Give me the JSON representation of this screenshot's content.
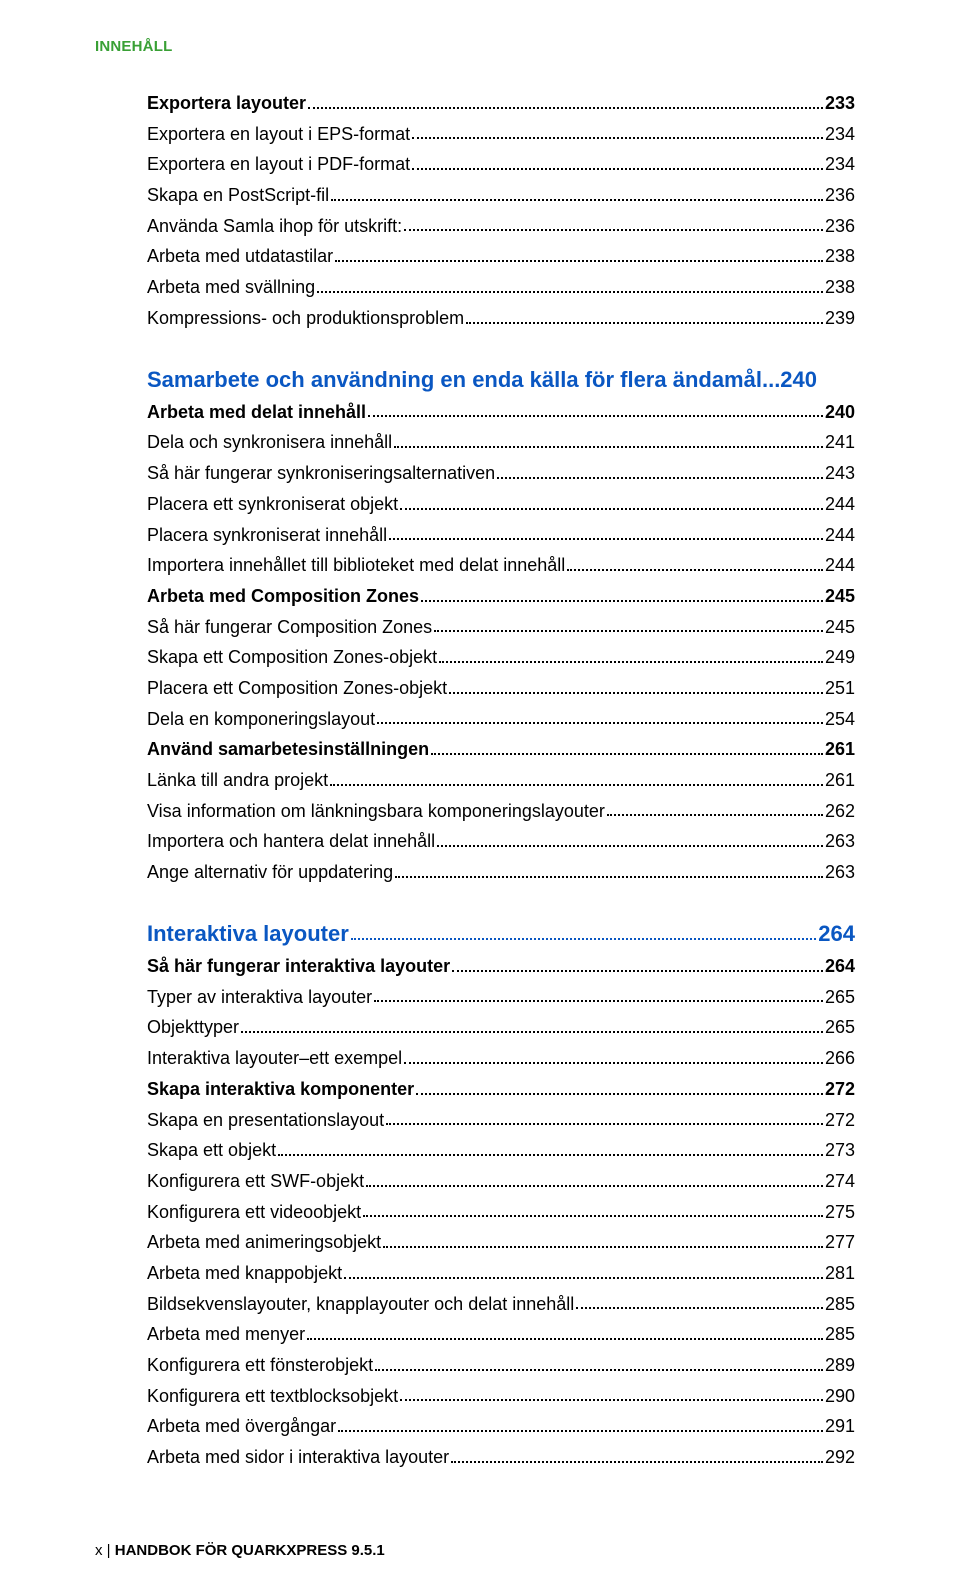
{
  "typography": {
    "normal_fontsize": 18,
    "bold_fontsize": 18,
    "chapter_fontsize": 22,
    "header_fontsize": 15,
    "footer_fontsize": 15,
    "chapter_color": "#0a57c2",
    "header_color": "#39a035",
    "text_color": "#000000",
    "background_color": "#ffffff",
    "dot_color": "#000000"
  },
  "header": "INNEHÅLL",
  "entries": [
    {
      "label": "Exportera layouter",
      "page": "233",
      "level": "bold"
    },
    {
      "label": "Exportera en layout i EPS-format",
      "page": "234",
      "level": "normal"
    },
    {
      "label": "Exportera en layout i PDF-format",
      "page": "234",
      "level": "normal"
    },
    {
      "label": "Skapa en PostScript-fil",
      "page": "236",
      "level": "normal"
    },
    {
      "label": "Använda Samla ihop för utskrift:",
      "page": "236",
      "level": "normal"
    },
    {
      "label": "Arbeta med utdatastilar",
      "page": "238",
      "level": "normal"
    },
    {
      "label": "Arbeta med svällning",
      "page": "238",
      "level": "normal"
    },
    {
      "label": "Kompressions- och produktionsproblem",
      "page": "239",
      "level": "normal"
    },
    {
      "break": true
    },
    {
      "label": "Samarbete och användning en enda källa för flera ändamål",
      "page": "...240",
      "level": "chap",
      "nodots": true
    },
    {
      "label": "Arbeta med delat innehåll",
      "page": "240",
      "level": "bold"
    },
    {
      "label": "Dela och synkronisera innehåll",
      "page": "241",
      "level": "normal"
    },
    {
      "label": "Så här fungerar synkroniseringsalternativen",
      "page": "243",
      "level": "normal"
    },
    {
      "label": "Placera ett synkroniserat objekt",
      "page": "244",
      "level": "normal"
    },
    {
      "label": "Placera synkroniserat innehåll",
      "page": "244",
      "level": "normal"
    },
    {
      "label": "Importera innehållet till biblioteket med delat innehåll",
      "page": "244",
      "level": "normal"
    },
    {
      "label": "Arbeta med Composition Zones",
      "page": "245",
      "level": "bold"
    },
    {
      "label": "Så här fungerar Composition Zones",
      "page": "245",
      "level": "normal"
    },
    {
      "label": "Skapa ett Composition Zones-objekt",
      "page": "249",
      "level": "normal"
    },
    {
      "label": "Placera ett Composition Zones-objekt",
      "page": "251",
      "level": "normal"
    },
    {
      "label": "Dela en komponeringslayout",
      "page": "254",
      "level": "normal"
    },
    {
      "label": "Använd samarbetesinställningen",
      "page": "261",
      "level": "bold"
    },
    {
      "label": "Länka till andra projekt",
      "page": "261",
      "level": "normal"
    },
    {
      "label": "Visa information om länkningsbara komponeringslayouter",
      "page": "262",
      "level": "normal"
    },
    {
      "label": "Importera och hantera delat innehåll",
      "page": "263",
      "level": "normal"
    },
    {
      "label": "Ange alternativ för uppdatering",
      "page": "263",
      "level": "normal"
    },
    {
      "break": true
    },
    {
      "label": "Interaktiva layouter",
      "page": "264",
      "level": "chap"
    },
    {
      "label": "Så här fungerar interaktiva layouter",
      "page": "264",
      "level": "bold"
    },
    {
      "label": "Typer av interaktiva layouter",
      "page": "265",
      "level": "normal"
    },
    {
      "label": "Objekttyper",
      "page": "265",
      "level": "normal"
    },
    {
      "label": "Interaktiva layouter–ett exempel",
      "page": "266",
      "level": "normal"
    },
    {
      "label": "Skapa interaktiva komponenter",
      "page": "272",
      "level": "bold"
    },
    {
      "label": "Skapa en presentationslayout",
      "page": "272",
      "level": "normal"
    },
    {
      "label": "Skapa ett objekt",
      "page": "273",
      "level": "normal"
    },
    {
      "label": "Konfigurera ett SWF-objekt",
      "page": "274",
      "level": "normal"
    },
    {
      "label": "Konfigurera ett videoobjekt",
      "page": "275",
      "level": "normal"
    },
    {
      "label": "Arbeta med animeringsobjekt",
      "page": "277",
      "level": "normal"
    },
    {
      "label": "Arbeta med knappobjekt",
      "page": "281",
      "level": "normal"
    },
    {
      "label": "Bildsekvenslayouter, knapplayouter och delat innehåll",
      "page": "285",
      "level": "normal"
    },
    {
      "label": "Arbeta med menyer",
      "page": "285",
      "level": "normal"
    },
    {
      "label": "Konfigurera ett fönsterobjekt",
      "page": "289",
      "level": "normal"
    },
    {
      "label": "Konfigurera ett textblocksobjekt",
      "page": "290",
      "level": "normal"
    },
    {
      "label": "Arbeta med övergångar",
      "page": "291",
      "level": "normal"
    },
    {
      "label": "Arbeta med sidor i interaktiva layouter",
      "page": "292",
      "level": "normal"
    }
  ],
  "footer": {
    "page_num": "x",
    "separator": " | ",
    "title": "HANDBOK FÖR QUARKXPRESS 9.5.1"
  }
}
